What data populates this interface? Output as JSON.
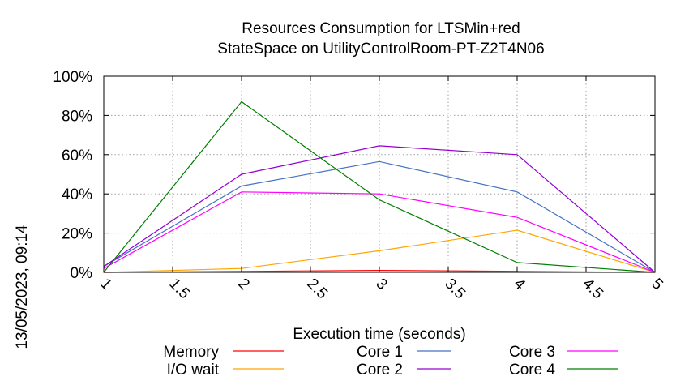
{
  "chart_data": {
    "type": "line",
    "title": [
      "Resources Consumption for LTSMin+red",
      "StateSpace on UtilityControlRoom-PT-Z2T4N06"
    ],
    "xlabel": "Execution time (seconds)",
    "ylabel": "",
    "timestamp": "13/05/2023, 09:14",
    "xlim": [
      1,
      5
    ],
    "ylim": [
      0,
      100
    ],
    "xticks": [
      1,
      1.5,
      2,
      2.5,
      3,
      3.5,
      4,
      4.5,
      5
    ],
    "xtick_labels": [
      "1",
      "1.5",
      "2",
      "2.5",
      "3",
      "3.5",
      "4",
      "4.5",
      "5"
    ],
    "yticks": [
      0,
      20,
      40,
      60,
      80,
      100
    ],
    "ytick_labels": [
      "0%",
      "20%",
      "40%",
      "60%",
      "80%",
      "100%"
    ],
    "grid": true,
    "legend_position": "bottom",
    "series": [
      {
        "name": "Memory",
        "color": "#ff0000",
        "x": [
          1,
          2,
          3,
          4,
          5
        ],
        "y": [
          0,
          0.5,
          1,
          0.5,
          0
        ]
      },
      {
        "name": "I/O wait",
        "color": "#ffa500",
        "x": [
          1,
          2,
          3,
          4,
          5
        ],
        "y": [
          0,
          2,
          11,
          21.5,
          0
        ]
      },
      {
        "name": "Core 1",
        "color": "#4472c4",
        "x": [
          1,
          2,
          3,
          4,
          5
        ],
        "y": [
          3,
          44,
          56.5,
          41,
          0
        ]
      },
      {
        "name": "Core 2",
        "color": "#9400d3",
        "x": [
          1,
          2,
          3,
          4,
          5
        ],
        "y": [
          3,
          50,
          64.5,
          60,
          0
        ]
      },
      {
        "name": "Core 3",
        "color": "#ff00ff",
        "x": [
          1,
          2,
          3,
          4,
          5
        ],
        "y": [
          2,
          41,
          40,
          28,
          0
        ]
      },
      {
        "name": "Core 4",
        "color": "#008000",
        "x": [
          1,
          2,
          3,
          4,
          5
        ],
        "y": [
          0,
          87,
          37,
          5,
          0
        ]
      }
    ]
  }
}
